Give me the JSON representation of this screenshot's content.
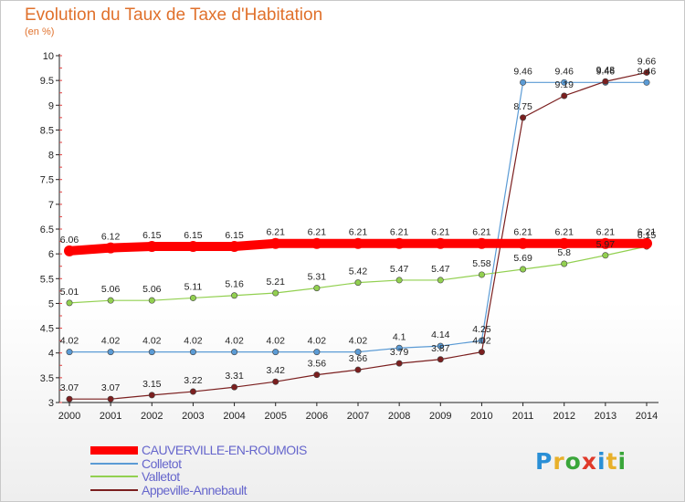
{
  "title": "Evolution du Taux de Taxe d'Habitation",
  "subtitle": "(en %)",
  "logo": {
    "text": "Proxiti",
    "colors": [
      "#2a8fd6",
      "#e8b02a",
      "#3aa63a",
      "#e03a2a",
      "#2a8fd6",
      "#e8b02a",
      "#3aa63a"
    ]
  },
  "chart_data": {
    "type": "line",
    "title": "Evolution du Taux de Taxe d'Habitation",
    "ylabel": "(en %)",
    "x": [
      2000,
      2001,
      2002,
      2003,
      2004,
      2005,
      2006,
      2007,
      2008,
      2009,
      2010,
      2011,
      2012,
      2013,
      2014
    ],
    "ylim": [
      3,
      10
    ],
    "yticks": [
      3,
      3.5,
      4,
      4.5,
      5,
      5.5,
      6,
      6.5,
      7,
      7.5,
      8,
      8.5,
      9,
      9.5,
      10
    ],
    "grid": false,
    "legend_position": "bottom-left",
    "series": [
      {
        "name": "CAUVERVILLE-EN-ROUMOIS",
        "color": "#ff0000",
        "values": [
          6.06,
          6.12,
          6.15,
          6.15,
          6.15,
          6.21,
          6.21,
          6.21,
          6.21,
          6.21,
          6.21,
          6.21,
          6.21,
          6.21,
          6.21
        ],
        "labels": [
          "6.06",
          "6.12",
          "6.15",
          "6.15",
          "6.15",
          "6.21",
          "6.21",
          "6.21",
          "6.21",
          "6.21",
          "6.21",
          "6.21",
          "6.21",
          "6.21",
          "6.21"
        ]
      },
      {
        "name": "Colletot",
        "color": "#5b9bd5",
        "values": [
          4.02,
          4.02,
          4.02,
          4.02,
          4.02,
          4.02,
          4.02,
          4.02,
          4.1,
          4.14,
          4.25,
          9.46,
          9.46,
          9.46,
          9.46
        ],
        "labels": [
          "4.02",
          "4.02",
          "4.02",
          "4.02",
          "4.02",
          "4.02",
          "4.02",
          "4.02",
          "4.1",
          "4.14",
          "4.25",
          "9.46",
          "9.46",
          "9.46",
          "9.46"
        ]
      },
      {
        "name": "Valletot",
        "color": "#92d050",
        "values": [
          5.01,
          5.06,
          5.06,
          5.11,
          5.16,
          5.21,
          5.31,
          5.42,
          5.47,
          5.47,
          5.58,
          5.69,
          5.8,
          5.97,
          6.15
        ],
        "labels": [
          "5.01",
          "5.06",
          "5.06",
          "5.11",
          "5.16",
          "5.21",
          "5.31",
          "5.42",
          "5.47",
          "5.47",
          "5.58",
          "5.69",
          "5.8",
          "5.97",
          "6.15"
        ]
      },
      {
        "name": "Appeville-Annebault",
        "color": "#7b1f1f",
        "values": [
          3.07,
          3.07,
          3.15,
          3.22,
          3.31,
          3.42,
          3.56,
          3.66,
          3.79,
          3.87,
          4.02,
          8.75,
          9.19,
          9.48,
          9.66
        ],
        "labels": [
          "3.07",
          "3.07",
          "3.15",
          "3.22",
          "3.31",
          "3.42",
          "3.56",
          "3.66",
          "3.79",
          "3.87",
          "4.02",
          "8.75",
          "9.19",
          "9.48",
          "9.66"
        ]
      }
    ]
  }
}
